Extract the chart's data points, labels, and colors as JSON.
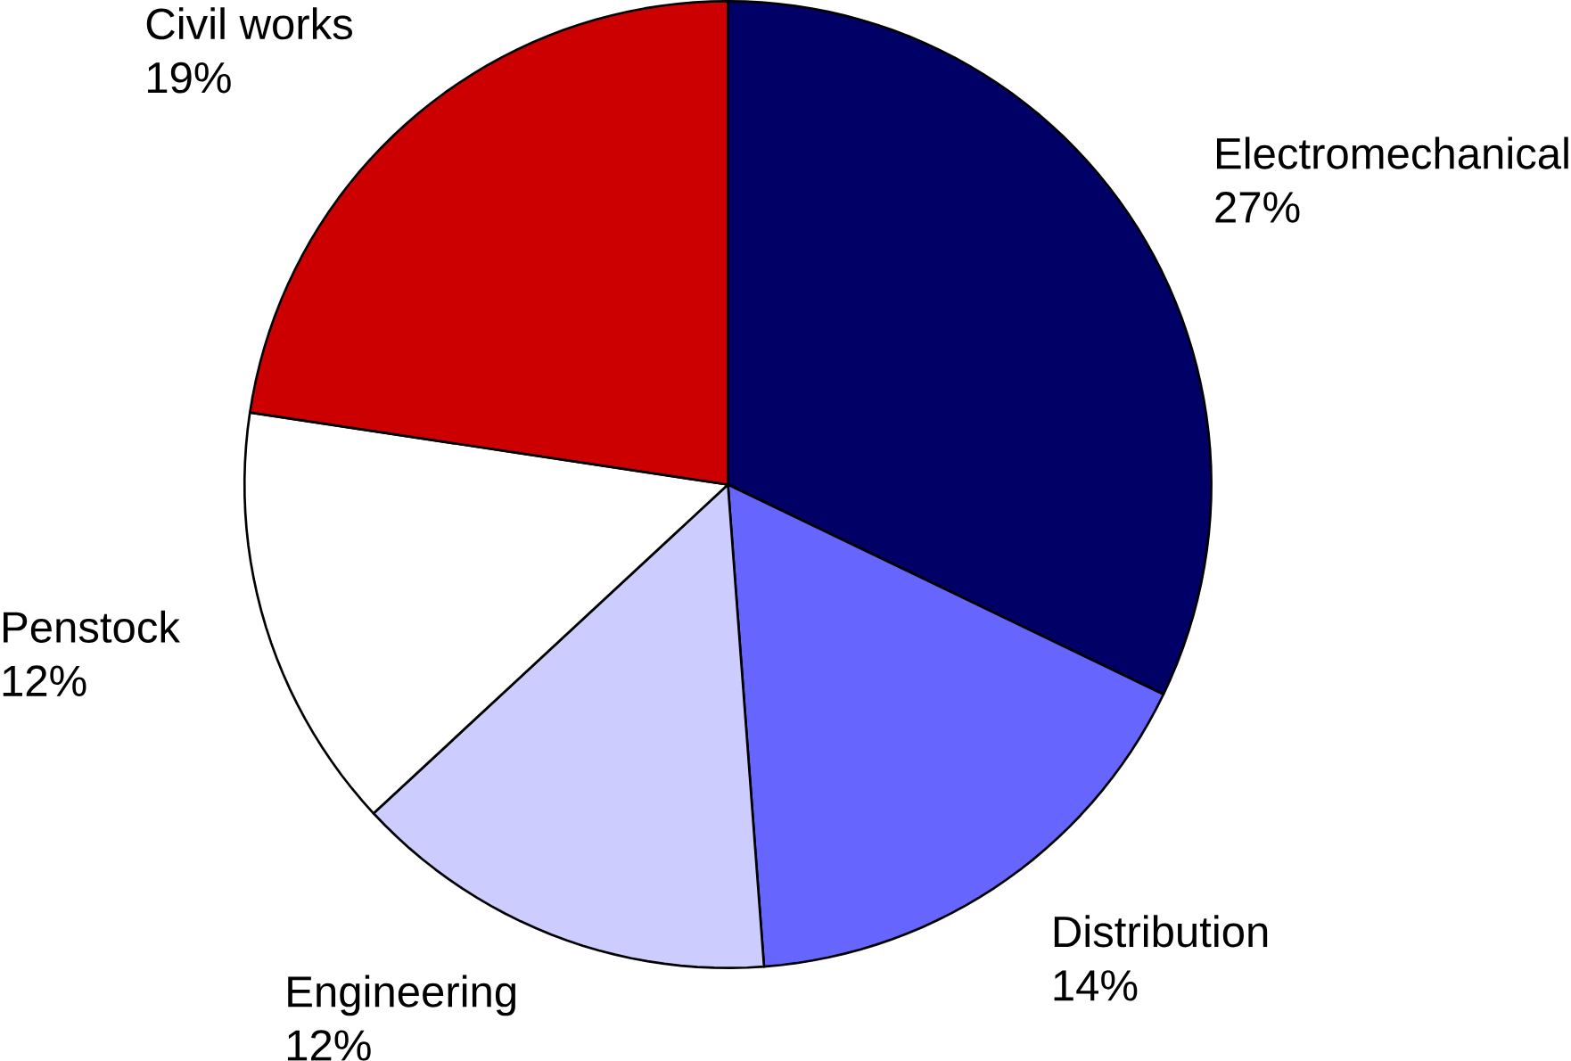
{
  "chart_data": {
    "type": "pie",
    "categories": [
      "Electromechanical",
      "Distribution",
      "Engineering",
      "Penstock",
      "Civil works"
    ],
    "values": [
      27,
      14,
      12,
      12,
      19
    ],
    "value_labels": [
      "27%",
      "14%",
      "12%",
      "12%",
      "19%"
    ],
    "colors": [
      "#000066",
      "#6666ff",
      "#ccccff",
      "#ffffff",
      "#cc0000"
    ]
  }
}
